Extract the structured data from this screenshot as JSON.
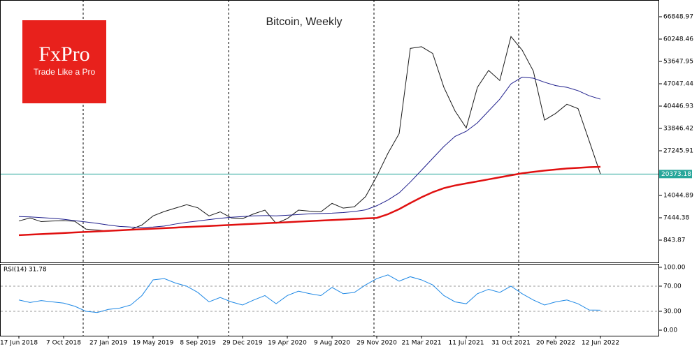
{
  "logo": {
    "title": "FxPro",
    "tagline": "Trade Like a Pro"
  },
  "chart_data": [
    {
      "type": "line",
      "title": "Bitcoin, Weekly",
      "categories": [
        "17 Jun 2018",
        null,
        null,
        null,
        "7 Oct 2018",
        null,
        null,
        null,
        "27 Jan 2019",
        null,
        null,
        null,
        "19 May 2019",
        null,
        null,
        null,
        "8 Sep 2019",
        null,
        null,
        null,
        "29 Dec 2019",
        null,
        null,
        null,
        "19 Apr 2020",
        null,
        null,
        null,
        "9 Aug 2020",
        null,
        null,
        null,
        "29 Nov 2020",
        null,
        null,
        null,
        "21 Mar 2021",
        null,
        null,
        null,
        "11 Jul 2021",
        null,
        null,
        null,
        "31 Oct 2021",
        null,
        null,
        null,
        "20 Feb 2022",
        null,
        null,
        null,
        "12 Jun 2022"
      ],
      "series": [
        {
          "color": "#1a1a1a",
          "values": [
            6500,
            7400,
            6300,
            6500,
            6600,
            6400,
            4100,
            3800,
            3500,
            3800,
            4000,
            5300,
            8000,
            9300,
            10300,
            11300,
            10400,
            8000,
            9200,
            7400,
            7200,
            8600,
            9700,
            5800,
            7200,
            9700,
            9400,
            9200,
            11700,
            10300,
            10700,
            13700,
            19700,
            26500,
            32300,
            57500,
            58000,
            56000,
            46000,
            39000,
            34000,
            46000,
            51000,
            48000,
            61000,
            57000,
            50800,
            36300,
            38300,
            41000,
            39700,
            30100,
            20373.18
          ]
        },
        {
          "color": "#1f1f8c",
          "values": [
            7800,
            7700,
            7500,
            7300,
            7000,
            6600,
            6200,
            5800,
            5300,
            4900,
            4700,
            4600,
            4700,
            5000,
            5600,
            6100,
            6500,
            6900,
            7300,
            7600,
            7800,
            8000,
            8100,
            8000,
            8200,
            8400,
            8600,
            8700,
            8800,
            9000,
            9300,
            9800,
            11000,
            12700,
            14800,
            18000,
            21500,
            25000,
            28500,
            31500,
            33000,
            35500,
            39000,
            42500,
            47000,
            49000,
            48700,
            47500,
            46500,
            46000,
            45000,
            43500,
            42500
          ]
        },
        {
          "color": "#e01010",
          "values": [
            2300,
            2460,
            2620,
            2780,
            2940,
            3100,
            3260,
            3420,
            3580,
            3740,
            3900,
            4060,
            4220,
            4380,
            4540,
            4700,
            4860,
            5020,
            5180,
            5340,
            5500,
            5660,
            5820,
            5980,
            6140,
            6300,
            6460,
            6620,
            6780,
            6940,
            7100,
            7260,
            7400,
            8500,
            10000,
            11800,
            13500,
            15000,
            16200,
            17000,
            17600,
            18200,
            18800,
            19400,
            20000,
            20600,
            21000,
            21400,
            21700,
            22000,
            22200,
            22400,
            22500
          ]
        }
      ],
      "current": 20373.18,
      "current_color": "#26a69a",
      "ylim": [
        -5757,
        71799
      ],
      "yticks": [
        843.87,
        7444.38,
        14044.89,
        27245.91,
        33846.42,
        40446.93,
        47047.44,
        53647.95,
        60248.46,
        66848.97
      ]
    },
    {
      "type": "line",
      "label": "RSI(14) 31.78",
      "series": [
        {
          "color": "#1e88e5",
          "values": [
            48,
            44,
            47,
            45,
            43,
            38,
            30,
            28,
            33,
            35,
            40,
            55,
            80,
            82,
            75,
            70,
            60,
            45,
            52,
            45,
            40,
            48,
            55,
            42,
            55,
            62,
            58,
            55,
            68,
            58,
            60,
            72,
            82,
            88,
            78,
            85,
            80,
            72,
            55,
            45,
            42,
            58,
            65,
            60,
            70,
            58,
            48,
            40,
            45,
            48,
            42,
            32,
            31.78
          ]
        }
      ],
      "ylim": [
        -10,
        105.5
      ],
      "yticks": [
        {
          "value": 0,
          "label": "0.00"
        },
        {
          "value": 30,
          "label": "30.00"
        },
        {
          "value": 70,
          "label": "70.00"
        },
        {
          "value": 100,
          "label": "100.00"
        }
      ]
    }
  ]
}
